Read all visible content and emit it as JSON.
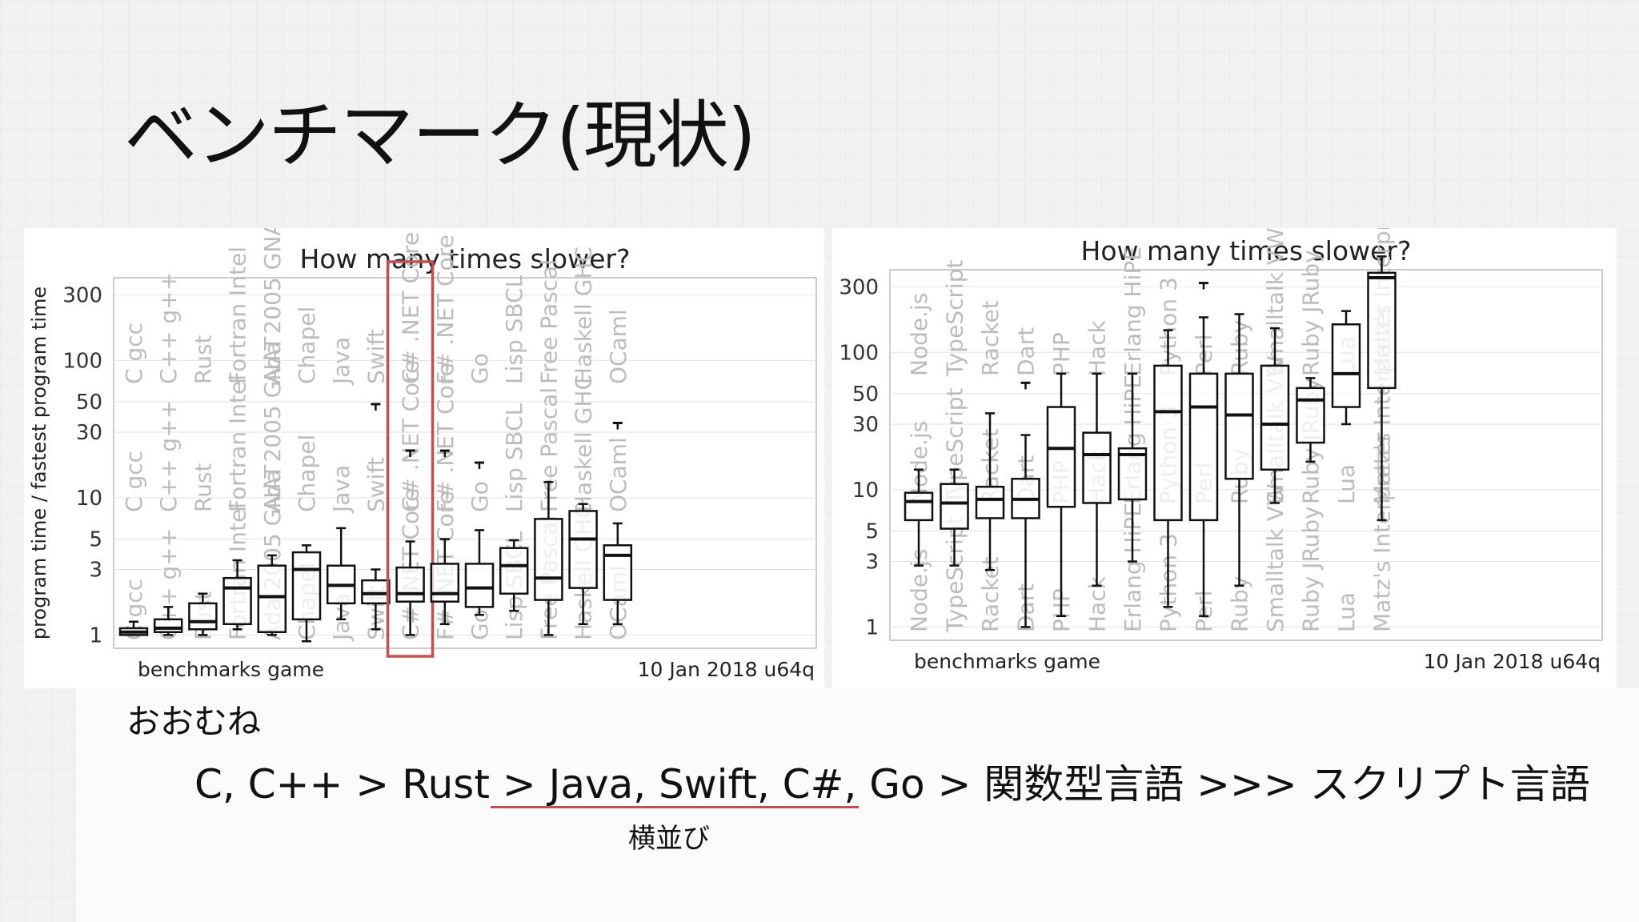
{
  "slide": {
    "title": "ベンチマーク(現状)",
    "note": "おおむね",
    "summary": "C, C++ > Rust > Java, Swift, C#, Go > 関数型言語 >>> スクリプト言語",
    "sidenote": "横並び",
    "accent_color": "#c0504d"
  },
  "chart_data": [
    {
      "type": "box",
      "title": "How many times slower?",
      "ylabel": "program time / fastest program time",
      "y_scale": "log",
      "ylim": [
        0.8,
        400
      ],
      "yticks": [
        1,
        3,
        5,
        10,
        30,
        50,
        100,
        300
      ],
      "footer_left": "benchmarks game",
      "footer_right": "10 Jan 2018 u64q",
      "highlight": "C# .NET Core",
      "highlight_color": "#c0504d",
      "categories": [
        "C gcc",
        "C++ g++",
        "Rust",
        "Fortran Intel",
        "Ada 2005 GNAT",
        "Chapel",
        "Java",
        "Swift",
        "C# .NET Core",
        "F# .NET Core",
        "Go",
        "Lisp SBCL",
        "Free Pascal",
        "Haskell GHC",
        "OCaml"
      ],
      "boxes": [
        {
          "min": 1.0,
          "q1": 1.0,
          "median": 1.05,
          "q3": 1.12,
          "max": 1.25,
          "outliers": []
        },
        {
          "min": 1.0,
          "q1": 1.05,
          "median": 1.12,
          "q3": 1.3,
          "max": 1.6,
          "outliers": []
        },
        {
          "min": 1.0,
          "q1": 1.1,
          "median": 1.25,
          "q3": 1.7,
          "max": 2.0,
          "outliers": []
        },
        {
          "min": 1.1,
          "q1": 1.2,
          "median": 2.2,
          "q3": 2.6,
          "max": 3.5,
          "outliers": []
        },
        {
          "min": 1.0,
          "q1": 1.05,
          "median": 1.9,
          "q3": 3.2,
          "max": 3.8,
          "outliers": []
        },
        {
          "min": 0.9,
          "q1": 1.3,
          "median": 3.0,
          "q3": 4.0,
          "max": 4.5,
          "outliers": []
        },
        {
          "min": 1.3,
          "q1": 1.7,
          "median": 2.3,
          "q3": 3.2,
          "max": 6.0,
          "outliers": []
        },
        {
          "min": 1.1,
          "q1": 1.7,
          "median": 2.0,
          "q3": 2.5,
          "max": 3.0,
          "outliers": [
            48
          ]
        },
        {
          "min": 1.0,
          "q1": 1.75,
          "median": 2.0,
          "q3": 3.1,
          "max": 4.8,
          "outliers": [
            22
          ]
        },
        {
          "min": 1.2,
          "q1": 1.75,
          "median": 2.0,
          "q3": 3.3,
          "max": 5.0,
          "outliers": [
            22
          ]
        },
        {
          "min": 1.4,
          "q1": 1.6,
          "median": 2.2,
          "q3": 3.3,
          "max": 5.8,
          "outliers": [
            18
          ]
        },
        {
          "min": 1.5,
          "q1": 2.0,
          "median": 3.2,
          "q3": 4.3,
          "max": 4.9,
          "outliers": []
        },
        {
          "min": 1.0,
          "q1": 1.8,
          "median": 2.6,
          "q3": 7.0,
          "max": 13.0,
          "outliers": []
        },
        {
          "min": 1.2,
          "q1": 2.2,
          "median": 5.0,
          "q3": 8.0,
          "max": 9.0,
          "outliers": []
        },
        {
          "min": 1.2,
          "q1": 1.8,
          "median": 3.8,
          "q3": 4.5,
          "max": 6.5,
          "outliers": [
            35
          ]
        }
      ]
    },
    {
      "type": "box",
      "title": "How many times slower?",
      "y_scale": "log",
      "ylim": [
        0.8,
        400
      ],
      "yticks": [
        1,
        3,
        5,
        10,
        30,
        50,
        100,
        300
      ],
      "footer_left": "benchmarks game",
      "footer_right": "10 Jan 2018 u64q",
      "categories": [
        "Node.js",
        "TypeScript",
        "Racket",
        "Dart",
        "PHP",
        "Hack",
        "Erlang HiPE",
        "Python 3",
        "Perl",
        "Ruby",
        "Smalltalk VW",
        "Ruby JRuby",
        "Lua",
        "Matz's Interpreter"
      ],
      "boxes": [
        {
          "min": 2.8,
          "q1": 6.0,
          "median": 8.2,
          "q3": 9.5,
          "max": 14.0,
          "outliers": []
        },
        {
          "min": 2.8,
          "q1": 5.2,
          "median": 8.0,
          "q3": 11.0,
          "max": 14.0,
          "outliers": []
        },
        {
          "min": 2.6,
          "q1": 6.2,
          "median": 8.5,
          "q3": 10.5,
          "max": 36.0,
          "outliers": []
        },
        {
          "min": 1.0,
          "q1": 6.2,
          "median": 8.5,
          "q3": 12.0,
          "max": 25.0,
          "outliers": [
            60
          ]
        },
        {
          "min": 1.2,
          "q1": 7.5,
          "median": 20.0,
          "q3": 40.0,
          "max": 70.0,
          "outliers": []
        },
        {
          "min": 2.0,
          "q1": 8.0,
          "median": 18.0,
          "q3": 26.0,
          "max": 70.0,
          "outliers": []
        },
        {
          "min": 3.0,
          "q1": 8.5,
          "median": 18.0,
          "q3": 20.0,
          "max": 70.0,
          "outliers": []
        },
        {
          "min": 1.4,
          "q1": 6.0,
          "median": 37.0,
          "q3": 80.0,
          "max": 145.0,
          "outliers": []
        },
        {
          "min": 1.2,
          "q1": 6.0,
          "median": 40.0,
          "q3": 70.0,
          "max": 180.0,
          "outliers": [
            320
          ]
        },
        {
          "min": 2.0,
          "q1": 12.0,
          "median": 35.0,
          "q3": 70.0,
          "max": 190.0,
          "outliers": []
        },
        {
          "min": 8.0,
          "q1": 14.0,
          "median": 30.0,
          "q3": 80.0,
          "max": 150.0,
          "outliers": []
        },
        {
          "min": 16.0,
          "q1": 22.0,
          "median": 45.0,
          "q3": 55.0,
          "max": 65.0,
          "outliers": []
        },
        {
          "min": 30.0,
          "q1": 40.0,
          "median": 70.0,
          "q3": 160.0,
          "max": 200.0,
          "outliers": []
        },
        {
          "min": 6.0,
          "q1": 55.0,
          "median": 350.0,
          "q3": 380.0,
          "max": 500.0,
          "outliers": []
        }
      ]
    }
  ]
}
